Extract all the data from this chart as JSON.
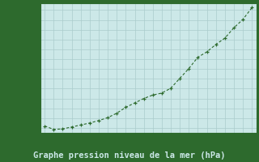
{
  "x": [
    0,
    1,
    2,
    3,
    4,
    5,
    6,
    7,
    8,
    9,
    10,
    11,
    12,
    13,
    14,
    15,
    16,
    17,
    18,
    19,
    20,
    21,
    22,
    23
  ],
  "y": [
    1019.2,
    1018.85,
    1018.9,
    1019.1,
    1019.3,
    1019.5,
    1019.75,
    1020.05,
    1020.5,
    1021.1,
    1021.55,
    1022.0,
    1022.35,
    1022.55,
    1023.05,
    1024.05,
    1025.05,
    1026.2,
    1026.75,
    1027.5,
    1028.15,
    1029.2,
    1030.05,
    1031.25
  ],
  "line_color": "#2d6a2d",
  "marker": "+",
  "bg_color": "#cce8e8",
  "grid_color": "#aacccc",
  "xlabel": "Graphe pression niveau de la mer (hPa)",
  "ylim": [
    1018.5,
    1031.7
  ],
  "yticks": [
    1019,
    1020,
    1021,
    1022,
    1023,
    1024,
    1025,
    1026,
    1027,
    1028,
    1029,
    1030,
    1031
  ],
  "xticks": [
    0,
    1,
    2,
    3,
    4,
    5,
    6,
    7,
    8,
    9,
    10,
    11,
    12,
    13,
    14,
    15,
    16,
    17,
    18,
    19,
    20,
    21,
    22,
    23
  ],
  "tick_label_fontsize": 5.5,
  "xlabel_fontsize": 7.5,
  "axis_bg": "#cce8e8",
  "fig_bg": "#2d6a2d",
  "spine_color": "#2d6a2d",
  "border_color": "#2d6a2d",
  "xlabel_color": "#2d6a2d"
}
